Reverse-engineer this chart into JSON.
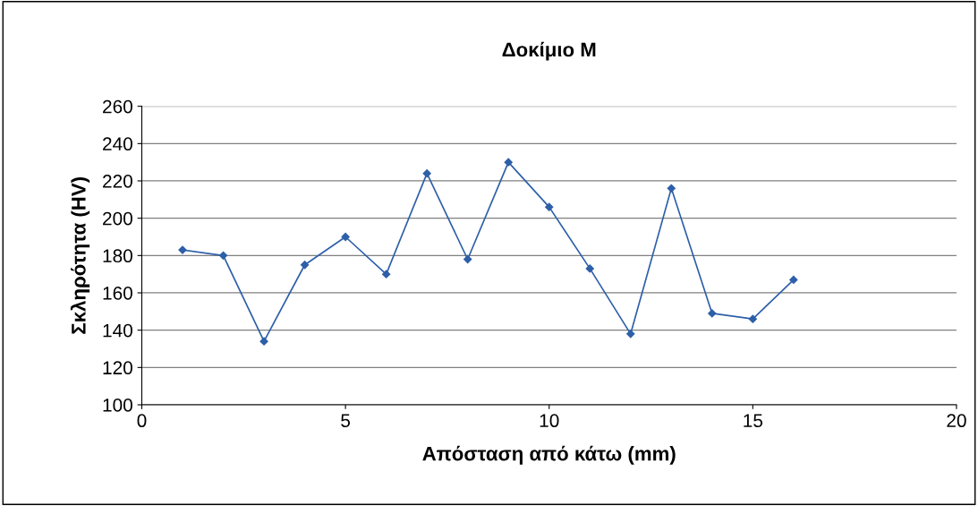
{
  "chart_data": {
    "type": "line",
    "title": "Δοκίμιο M",
    "xlabel": "Απόσταση από κάτω (mm)",
    "ylabel": "Σκληρότητα (HV)",
    "x": [
      1,
      2,
      3,
      4,
      5,
      6,
      7,
      8,
      9,
      10,
      11,
      12,
      13,
      14,
      15,
      16
    ],
    "series": [
      {
        "color": "#2e5fa8",
        "values": [
          183,
          180,
          134,
          175,
          190,
          170,
          224,
          178,
          230,
          206,
          173,
          138,
          216,
          149,
          146,
          167
        ]
      }
    ],
    "xlim": [
      0,
      20
    ],
    "xticks": [
      0,
      5,
      10,
      15,
      20
    ],
    "ylim": [
      100,
      260
    ],
    "yticks": [
      100,
      120,
      140,
      160,
      180,
      200,
      220,
      240,
      260
    ],
    "grid": "y",
    "marker": "diamond",
    "line_style": "solid",
    "legend": false
  }
}
